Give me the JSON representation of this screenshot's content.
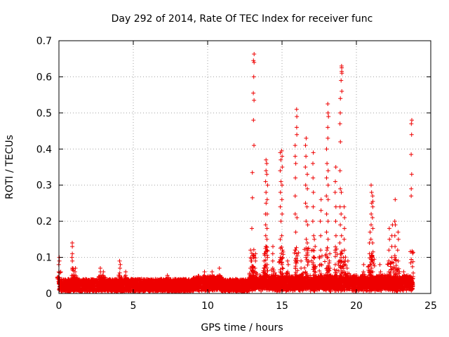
{
  "chart_data": {
    "type": "scatter",
    "title": "Day 292 of 2014, Rate Of TEC Index for receiver func",
    "xlabel": "GPS time / hours",
    "ylabel": "ROTI / TECUs",
    "xlim": [
      0,
      25
    ],
    "ylim": [
      0,
      0.7
    ],
    "xticks": [
      "0",
      "5",
      "10",
      "15",
      "20",
      "25"
    ],
    "yticks": [
      "0",
      "0.1",
      "0.2",
      "0.3",
      "0.4",
      "0.5",
      "0.6",
      "0.7"
    ],
    "grid": true,
    "marker": "plus",
    "series_color": "#ee0000",
    "baseline": {
      "x_start": 0,
      "x_end": 23.8,
      "typical_max": 0.04
    },
    "spikes": [
      {
        "x": 0.0,
        "values": [
          0.04,
          0.06,
          0.08,
          0.09,
          0.1
        ]
      },
      {
        "x": 0.9,
        "values": [
          0.05,
          0.07,
          0.09,
          0.1,
          0.11,
          0.13,
          0.14
        ]
      },
      {
        "x": 1.1,
        "values": [
          0.04,
          0.06,
          0.07
        ]
      },
      {
        "x": 2.8,
        "values": [
          0.04,
          0.05,
          0.06,
          0.07
        ]
      },
      {
        "x": 3.0,
        "values": [
          0.04,
          0.05,
          0.06
        ]
      },
      {
        "x": 4.1,
        "values": [
          0.05,
          0.07,
          0.08,
          0.09
        ]
      },
      {
        "x": 4.5,
        "values": [
          0.04,
          0.05,
          0.06
        ]
      },
      {
        "x": 7.3,
        "values": [
          0.04,
          0.05
        ]
      },
      {
        "x": 9.8,
        "values": [
          0.04,
          0.05,
          0.06
        ]
      },
      {
        "x": 10.3,
        "values": [
          0.05,
          0.06
        ]
      },
      {
        "x": 10.8,
        "values": [
          0.05,
          0.07
        ]
      },
      {
        "x": 12.9,
        "values": [
          0.05,
          0.07,
          0.09,
          0.1,
          0.12
        ]
      },
      {
        "x": 13.0,
        "values": [
          0.18,
          0.265,
          0.335
        ]
      },
      {
        "x": 13.1,
        "values": [
          0.41,
          0.48,
          0.535,
          0.555,
          0.6,
          0.64,
          0.645,
          0.663
        ]
      },
      {
        "x": 13.2,
        "values": [
          0.07,
          0.09,
          0.11
        ]
      },
      {
        "x": 13.8,
        "values": [
          0.05,
          0.07,
          0.09,
          0.11
        ]
      },
      {
        "x": 13.9,
        "values": [
          0.13,
          0.16,
          0.19,
          0.22,
          0.25,
          0.28,
          0.31,
          0.34,
          0.37
        ]
      },
      {
        "x": 14.0,
        "values": [
          0.05,
          0.08,
          0.1,
          0.12,
          0.15,
          0.18,
          0.22,
          0.26,
          0.3,
          0.33,
          0.36
        ]
      },
      {
        "x": 14.4,
        "values": [
          0.05,
          0.07,
          0.09,
          0.11,
          0.13
        ]
      },
      {
        "x": 14.9,
        "values": [
          0.06,
          0.1,
          0.15,
          0.2,
          0.24,
          0.28,
          0.31,
          0.34,
          0.37,
          0.39
        ]
      },
      {
        "x": 15.0,
        "values": [
          0.08,
          0.12,
          0.16,
          0.22,
          0.26,
          0.3,
          0.35,
          0.38,
          0.395
        ]
      },
      {
        "x": 15.4,
        "values": [
          0.04,
          0.06,
          0.08,
          0.09
        ]
      },
      {
        "x": 15.9,
        "values": [
          0.07,
          0.12,
          0.17,
          0.22,
          0.27,
          0.32,
          0.36,
          0.38,
          0.41
        ]
      },
      {
        "x": 16.0,
        "values": [
          0.44,
          0.46,
          0.49,
          0.51,
          0.11,
          0.21
        ]
      },
      {
        "x": 16.3,
        "values": [
          0.05,
          0.07,
          0.09
        ]
      },
      {
        "x": 16.6,
        "values": [
          0.06,
          0.1,
          0.15,
          0.2,
          0.25,
          0.3,
          0.35,
          0.38,
          0.41,
          0.43
        ]
      },
      {
        "x": 16.7,
        "values": [
          0.05,
          0.09,
          0.14,
          0.19,
          0.24,
          0.29,
          0.33
        ]
      },
      {
        "x": 17.1,
        "values": [
          0.05,
          0.08,
          0.12,
          0.16,
          0.2,
          0.24,
          0.28,
          0.32,
          0.36,
          0.39
        ]
      },
      {
        "x": 17.2,
        "values": [
          0.05,
          0.07,
          0.1,
          0.13,
          0.15
        ]
      },
      {
        "x": 17.6,
        "values": [
          0.05,
          0.08,
          0.12,
          0.16,
          0.2,
          0.23,
          0.26
        ]
      },
      {
        "x": 18.0,
        "values": [
          0.07,
          0.12,
          0.17,
          0.22,
          0.27,
          0.32,
          0.36,
          0.4
        ]
      },
      {
        "x": 18.1,
        "values": [
          0.1,
          0.15,
          0.2,
          0.26,
          0.3,
          0.34,
          0.43,
          0.46,
          0.49,
          0.5,
          0.525
        ]
      },
      {
        "x": 18.2,
        "values": [
          0.05,
          0.07,
          0.09,
          0.11
        ]
      },
      {
        "x": 18.6,
        "values": [
          0.05,
          0.08,
          0.12,
          0.16,
          0.2,
          0.24,
          0.28,
          0.31,
          0.35
        ]
      },
      {
        "x": 18.9,
        "values": [
          0.09,
          0.14,
          0.19,
          0.24,
          0.29,
          0.34,
          0.42,
          0.47,
          0.5,
          0.54
        ]
      },
      {
        "x": 19.0,
        "values": [
          0.1,
          0.16,
          0.22,
          0.28,
          0.56,
          0.59,
          0.61,
          0.625,
          0.63,
          0.615
        ]
      },
      {
        "x": 19.2,
        "values": [
          0.06,
          0.09,
          0.12,
          0.15,
          0.18,
          0.21,
          0.24
        ]
      },
      {
        "x": 19.4,
        "values": [
          0.05,
          0.07,
          0.09
        ]
      },
      {
        "x": 20.5,
        "values": [
          0.04,
          0.06,
          0.08
        ]
      },
      {
        "x": 20.9,
        "values": [
          0.05,
          0.08,
          0.11,
          0.14,
          0.17
        ]
      },
      {
        "x": 21.0,
        "values": [
          0.07,
          0.11,
          0.15,
          0.19,
          0.22,
          0.25,
          0.28,
          0.3
        ]
      },
      {
        "x": 21.1,
        "values": [
          0.06,
          0.1,
          0.14,
          0.18,
          0.21,
          0.24,
          0.255,
          0.27
        ]
      },
      {
        "x": 21.6,
        "values": [
          0.04,
          0.06,
          0.08
        ]
      },
      {
        "x": 22.2,
        "values": [
          0.06,
          0.09,
          0.12,
          0.15,
          0.18
        ]
      },
      {
        "x": 22.4,
        "values": [
          0.07,
          0.1,
          0.13,
          0.16,
          0.19
        ]
      },
      {
        "x": 22.6,
        "values": [
          0.07,
          0.1,
          0.13,
          0.16,
          0.19,
          0.2,
          0.26
        ]
      },
      {
        "x": 22.8,
        "values": [
          0.06,
          0.09,
          0.12,
          0.15,
          0.17
        ]
      },
      {
        "x": 23.2,
        "values": [
          0.04,
          0.05,
          0.06
        ]
      },
      {
        "x": 23.7,
        "values": [
          0.27,
          0.29,
          0.33,
          0.385,
          0.44,
          0.47,
          0.48
        ]
      }
    ]
  }
}
